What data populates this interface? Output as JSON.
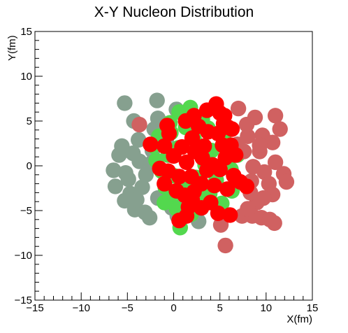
{
  "chart_data": {
    "type": "scatter",
    "title": "X-Y Nucleon Distribution",
    "xlabel": "X(fm)",
    "ylabel": "Y(fm)",
    "xlim": [
      -15,
      15
    ],
    "ylim": [
      -15,
      15
    ],
    "xticks": [
      -15,
      -10,
      -5,
      0,
      5,
      10,
      15
    ],
    "yticks": [
      -15,
      -10,
      -5,
      0,
      5,
      10,
      15
    ],
    "xtick_labels": [
      "−15",
      "−10",
      "−5",
      "0",
      "5",
      "10",
      "15"
    ],
    "ytick_labels": [
      "−15",
      "−10",
      "−5",
      "0",
      "5",
      "10",
      "15"
    ],
    "grid": false,
    "legend": "none",
    "marker_radius_fm": 0.85,
    "series": [
      {
        "color": "#86a08f",
        "points": [
          [
            -5.3,
            7.0
          ],
          [
            -1.8,
            7.3
          ],
          [
            -1.7,
            5.3
          ],
          [
            0.3,
            6.3
          ],
          [
            -4.3,
            5.0
          ],
          [
            -5.6,
            2.2
          ],
          [
            -5.9,
            1.2
          ],
          [
            -6.5,
            -0.5
          ],
          [
            -6.3,
            -2.3
          ],
          [
            -5.2,
            -0.8
          ],
          [
            -4.7,
            -3.1
          ],
          [
            -5.3,
            -3.9
          ],
          [
            -4.2,
            -4.9
          ],
          [
            -3.1,
            -5.2
          ],
          [
            -2.6,
            -5.8
          ],
          [
            -3.4,
            -2.4
          ],
          [
            -3.7,
            0.5
          ],
          [
            -2.3,
            1.7
          ],
          [
            -2.1,
            4.1
          ],
          [
            -3.8,
            2.9
          ],
          [
            -4.9,
            -1.5
          ],
          [
            -3.0,
            -1.0
          ],
          [
            -1.7,
            -3.6
          ],
          [
            -0.2,
            -4.7
          ],
          [
            0.4,
            -5.6
          ],
          [
            2.7,
            -6.2
          ],
          [
            1.2,
            -4.1
          ],
          [
            -0.8,
            2.9
          ],
          [
            -1.3,
            3.7
          ],
          [
            -4.0,
            -3.8
          ],
          [
            -2.4,
            0.3
          ],
          [
            -4.4,
            1.4
          ]
        ]
      },
      {
        "color": "#53d84e",
        "points": [
          [
            0.6,
            6.0
          ],
          [
            1.8,
            6.5
          ],
          [
            -0.4,
            4.8
          ],
          [
            -1.6,
            3.3
          ],
          [
            -2.2,
            2.2
          ],
          [
            -1.9,
            0.6
          ],
          [
            -1.3,
            -0.6
          ],
          [
            -0.9,
            -2.4
          ],
          [
            -0.3,
            -3.6
          ],
          [
            0.3,
            -4.8
          ],
          [
            0.7,
            -6.9
          ],
          [
            1.9,
            -5.4
          ],
          [
            2.2,
            3.0
          ],
          [
            3.1,
            5.2
          ],
          [
            3.7,
            4.2
          ],
          [
            4.1,
            1.7
          ],
          [
            3.4,
            0.1
          ],
          [
            2.4,
            -1.3
          ],
          [
            1.2,
            -2.3
          ],
          [
            0.0,
            -1.1
          ],
          [
            0.5,
            2.0
          ],
          [
            1.3,
            4.3
          ],
          [
            -0.6,
            1.2
          ],
          [
            3.9,
            -3.1
          ],
          [
            4.6,
            -1.6
          ],
          [
            5.2,
            -4.2
          ],
          [
            6.3,
            -2.8
          ],
          [
            7.1,
            -1.9
          ],
          [
            6.9,
            1.2
          ],
          [
            5.6,
            3.8
          ],
          [
            -1.0,
            -4.1
          ],
          [
            2.7,
            -3.6
          ],
          [
            -0.3,
            3.7
          ],
          [
            6.2,
            -0.4
          ]
        ]
      },
      {
        "color": "#d06161",
        "points": [
          [
            -3.7,
            4.6
          ],
          [
            7.0,
            6.4
          ],
          [
            8.8,
            5.4
          ],
          [
            11.0,
            5.6
          ],
          [
            11.5,
            4.1
          ],
          [
            9.6,
            3.4
          ],
          [
            8.0,
            3.3
          ],
          [
            7.6,
            1.6
          ],
          [
            9.3,
            1.6
          ],
          [
            10.7,
            2.6
          ],
          [
            11.0,
            0.4
          ],
          [
            9.8,
            -0.7
          ],
          [
            8.6,
            -0.1
          ],
          [
            8.4,
            -1.7
          ],
          [
            10.3,
            -2.0
          ],
          [
            11.9,
            -0.9
          ],
          [
            12.2,
            -1.8
          ],
          [
            10.7,
            -3.2
          ],
          [
            9.7,
            -3.6
          ],
          [
            9.0,
            -4.1
          ],
          [
            8.3,
            -3.0
          ],
          [
            7.4,
            -5.6
          ],
          [
            8.5,
            -5.6
          ],
          [
            9.5,
            -5.8
          ],
          [
            10.4,
            -6.0
          ],
          [
            10.9,
            -6.4
          ],
          [
            8.0,
            -4.8
          ],
          [
            5.1,
            -6.6
          ],
          [
            5.6,
            -8.9
          ],
          [
            7.9,
            4.6
          ],
          [
            6.9,
            2.4
          ],
          [
            9.3,
            2.3
          ]
        ]
      },
      {
        "color": "#ff0000",
        "points": [
          [
            -2.5,
            2.4
          ],
          [
            -1.0,
            2.2
          ],
          [
            -0.5,
            3.6
          ],
          [
            0.9,
            2.1
          ],
          [
            1.3,
            5.0
          ],
          [
            2.7,
            4.4
          ],
          [
            2.2,
            5.6
          ],
          [
            3.6,
            6.2
          ],
          [
            4.6,
            6.9
          ],
          [
            5.0,
            5.9
          ],
          [
            5.5,
            5.6
          ],
          [
            5.9,
            4.3
          ],
          [
            6.3,
            4.1
          ],
          [
            4.8,
            3.6
          ],
          [
            5.3,
            2.3
          ],
          [
            6.2,
            2.3
          ],
          [
            6.7,
            1.2
          ],
          [
            5.6,
            0.9
          ],
          [
            5.0,
            -0.4
          ],
          [
            6.5,
            -1.1
          ],
          [
            7.2,
            -1.8
          ],
          [
            5.8,
            -2.6
          ],
          [
            4.4,
            -2.2
          ],
          [
            3.6,
            -0.5
          ],
          [
            3.1,
            0.9
          ],
          [
            2.3,
            1.6
          ],
          [
            1.4,
            0.4
          ],
          [
            0.6,
            -1.2
          ],
          [
            -1.5,
            -0.3
          ],
          [
            -0.6,
            -0.6
          ],
          [
            -1.0,
            -2.0
          ],
          [
            0.3,
            -2.8
          ],
          [
            1.2,
            -3.3
          ],
          [
            2.2,
            -2.9
          ],
          [
            3.0,
            -2.0
          ],
          [
            4.0,
            -4.1
          ],
          [
            4.8,
            -5.3
          ],
          [
            6.1,
            -5.5
          ],
          [
            3.0,
            -4.7
          ],
          [
            1.6,
            -4.6
          ],
          [
            0.6,
            -6.1
          ],
          [
            1.4,
            -5.6
          ],
          [
            2.0,
            -3.8
          ],
          [
            4.2,
            0.1
          ],
          [
            3.3,
            2.2
          ],
          [
            2.0,
            3.1
          ],
          [
            0.0,
            1.1
          ],
          [
            7.9,
            -2.3
          ],
          [
            5.4,
            4.7
          ],
          [
            1.9,
            -1.2
          ],
          [
            -0.7,
            4.5
          ],
          [
            3.7,
            3.8
          ]
        ]
      }
    ]
  }
}
